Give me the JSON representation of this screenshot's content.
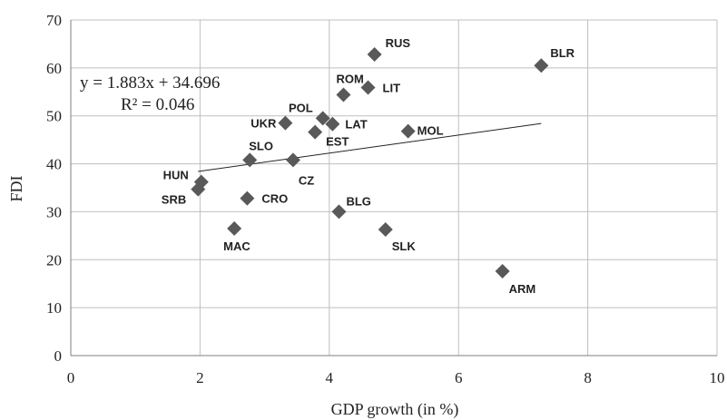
{
  "chart_data": {
    "type": "scatter",
    "xlabel": "GDP growth (in %)",
    "ylabel": "FDI",
    "xlim": [
      0,
      10
    ],
    "ylim": [
      0,
      70
    ],
    "xticks": [
      "0",
      "2",
      "4",
      "6",
      "8",
      "10"
    ],
    "yticks": [
      "0",
      "10",
      "20",
      "30",
      "40",
      "50",
      "60",
      "70"
    ],
    "grid": true,
    "points": [
      {
        "label": "RUS",
        "x": 4.7,
        "y": 62.8
      },
      {
        "label": "BLR",
        "x": 7.28,
        "y": 60.5
      },
      {
        "label": "ROM",
        "x": 4.22,
        "y": 54.4
      },
      {
        "label": "LIT",
        "x": 4.6,
        "y": 55.9
      },
      {
        "label": "POL",
        "x": 3.9,
        "y": 49.5
      },
      {
        "label": "UKR",
        "x": 3.32,
        "y": 48.5
      },
      {
        "label": "LAT",
        "x": 4.05,
        "y": 48.3
      },
      {
        "label": "EST",
        "x": 3.78,
        "y": 46.6
      },
      {
        "label": "MOL",
        "x": 5.22,
        "y": 46.8
      },
      {
        "label": "SLO",
        "x": 2.77,
        "y": 40.8
      },
      {
        "label": "CZ",
        "x": 3.44,
        "y": 40.8
      },
      {
        "label": "HUN",
        "x": 2.02,
        "y": 36.2
      },
      {
        "label": "SRB",
        "x": 1.97,
        "y": 34.7
      },
      {
        "label": "CRO",
        "x": 2.73,
        "y": 32.8
      },
      {
        "label": "BLG",
        "x": 4.15,
        "y": 30.0
      },
      {
        "label": "MAC",
        "x": 2.53,
        "y": 26.5
      },
      {
        "label": "SLK",
        "x": 4.87,
        "y": 26.3
      },
      {
        "label": "ARM",
        "x": 6.68,
        "y": 17.6
      }
    ],
    "trendline": {
      "equation": "y = 1.883x + 34.696",
      "r_squared": "R² = 0.046",
      "slope": 1.883,
      "intercept": 34.696,
      "x_range": [
        1.97,
        7.28
      ]
    }
  }
}
